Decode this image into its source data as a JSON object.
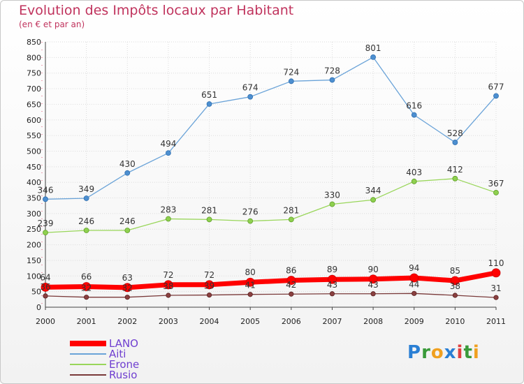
{
  "header": {
    "title": "Evolution des Impôts locaux par Habitant",
    "subtitle": "(en € et par an)"
  },
  "logo": {
    "text": "Proxiti",
    "letters": [
      {
        "ch": "P",
        "color": "#2a7fd4"
      },
      {
        "ch": "r",
        "color": "#3a9a3a"
      },
      {
        "ch": "o",
        "color": "#f0a020"
      },
      {
        "ch": "x",
        "color": "#2a7fd4"
      },
      {
        "ch": "i",
        "color": "#e04040"
      },
      {
        "ch": "t",
        "color": "#3a9a3a"
      },
      {
        "ch": "i",
        "color": "#f0a020"
      }
    ]
  },
  "chart_data": {
    "type": "line",
    "title": "Evolution des Impôts locaux par Habitant",
    "subtitle": "(en € et par an)",
    "x": [
      "2000",
      "2001",
      "2002",
      "2003",
      "2004",
      "2005",
      "2006",
      "2007",
      "2008",
      "2009",
      "2010",
      "2011"
    ],
    "ylim": [
      0,
      850
    ],
    "yticks": [
      0,
      50,
      100,
      150,
      200,
      250,
      300,
      350,
      400,
      450,
      500,
      550,
      600,
      650,
      700,
      750,
      800,
      850
    ],
    "grid": true,
    "legend_position": "bottom-left",
    "series": [
      {
        "name": "LANO",
        "color": "#ff0000",
        "values": [
          64,
          66,
          63,
          72,
          72,
          80,
          86,
          89,
          90,
          94,
          85,
          110
        ]
      },
      {
        "name": "Aiti",
        "color": "#6aa3d8",
        "values": [
          346,
          349,
          430,
          494,
          651,
          674,
          724,
          728,
          801,
          616,
          528,
          677
        ]
      },
      {
        "name": "Erone",
        "color": "#99d65a",
        "values": [
          239,
          246,
          246,
          283,
          281,
          276,
          281,
          330,
          344,
          403,
          412,
          367
        ]
      },
      {
        "name": "Rusio",
        "color": "#7a3a3a",
        "values": [
          36,
          32,
          32,
          38,
          39,
          41,
          42,
          43,
          43,
          44,
          38,
          31
        ]
      }
    ]
  }
}
